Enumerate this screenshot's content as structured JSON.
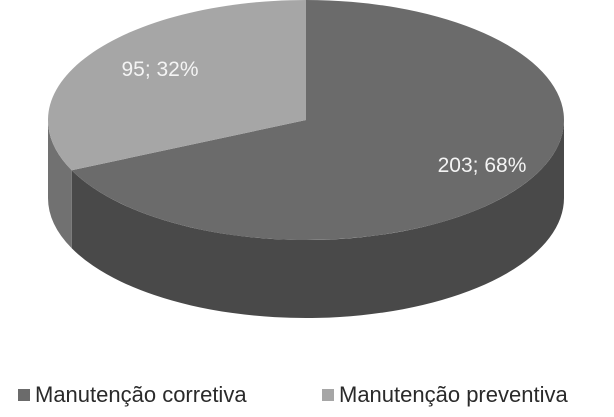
{
  "chart_data": {
    "type": "pie",
    "style": "3d",
    "categories": [
      "Manutenção corretiva",
      "Manutenção preventiva"
    ],
    "values": [
      203,
      95
    ],
    "percentages": [
      68,
      32
    ],
    "data_labels": [
      "203; 68%",
      "95; 32%"
    ],
    "colors": [
      "#6b6b6b",
      "#a6a6a6"
    ],
    "title": "",
    "legend_placement": "bottom"
  }
}
